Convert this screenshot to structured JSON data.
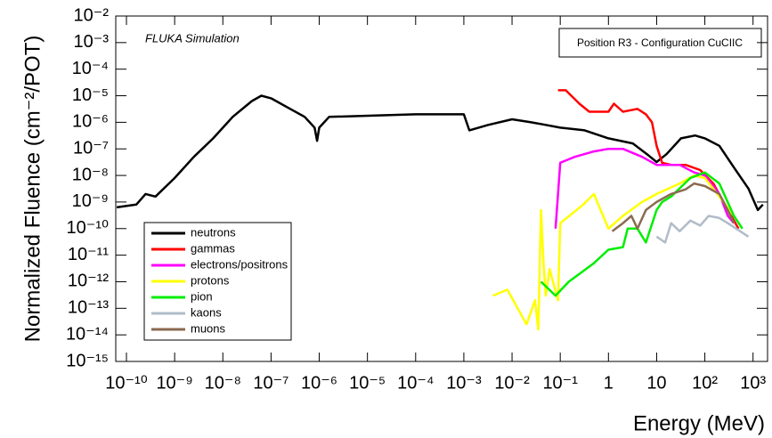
{
  "chart_data": {
    "type": "line",
    "xscale": "log",
    "yscale": "log",
    "annotation": "FLUKA Simulation",
    "info_box": "Position R3 - Configuration CuCIIC",
    "xlabel": "Energy (MeV)",
    "ylabel": "Normalized Fluence (cm⁻²/POT)",
    "legend": "lower left",
    "xlim": [
      6e-11,
      2000
    ],
    "ylim": [
      1e-15,
      0.01
    ],
    "xticks": [
      {
        "value": 1e-10,
        "label": "10⁻¹⁰"
      },
      {
        "value": 1e-09,
        "label": "10⁻⁹"
      },
      {
        "value": 1e-08,
        "label": "10⁻⁸"
      },
      {
        "value": 1e-07,
        "label": "10⁻⁷"
      },
      {
        "value": 1e-06,
        "label": "10⁻⁶"
      },
      {
        "value": 1e-05,
        "label": "10⁻⁵"
      },
      {
        "value": 0.0001,
        "label": "10⁻⁴"
      },
      {
        "value": 0.001,
        "label": "10⁻³"
      },
      {
        "value": 0.01,
        "label": "10⁻²"
      },
      {
        "value": 0.1,
        "label": "10⁻¹"
      },
      1,
      10,
      {
        "value": 100,
        "label": "10²"
      },
      {
        "value": 1000,
        "label": "10³"
      }
    ],
    "yticks": [
      {
        "value": 0.01,
        "label": "10⁻²"
      },
      {
        "value": 0.001,
        "label": "10⁻³"
      },
      {
        "value": 0.0001,
        "label": "10⁻⁴"
      },
      {
        "value": 1e-05,
        "label": "10⁻⁵"
      },
      {
        "value": 1e-06,
        "label": "10⁻⁶"
      },
      {
        "value": 1e-07,
        "label": "10⁻⁷"
      },
      {
        "value": 1e-08,
        "label": "10⁻⁸"
      },
      {
        "value": 1e-09,
        "label": "10⁻⁹"
      },
      {
        "value": 1e-10,
        "label": "10⁻¹⁰"
      },
      {
        "value": 1e-11,
        "label": "10⁻¹¹"
      },
      {
        "value": 1e-12,
        "label": "10⁻¹²"
      },
      {
        "value": 1e-13,
        "label": "10⁻¹³"
      },
      {
        "value": 1e-14,
        "label": "10⁻¹⁴"
      },
      {
        "value": 1e-15,
        "label": "10⁻¹⁵"
      }
    ],
    "series": [
      {
        "name": "neutrons",
        "color": "#000000",
        "x": [
          6.3e-11,
          1.6e-10,
          2.5e-10,
          4e-10,
          1e-09,
          2.5e-09,
          6.3e-09,
          1.6e-08,
          4e-08,
          6.3e-08,
          1e-07,
          2.5e-07,
          5e-07,
          8e-07,
          9e-07,
          1e-06,
          1.6e-06,
          0.0001,
          0.001,
          0.0013,
          0.0032,
          0.01,
          0.025,
          0.05,
          0.1,
          0.32,
          1,
          3.2,
          6.3,
          10,
          16,
          32,
          63,
          100,
          200,
          400,
          800,
          1260,
          1600
        ],
        "values": [
          6.3e-10,
          8e-10,
          2e-09,
          1.6e-09,
          8e-09,
          5e-08,
          2.5e-07,
          1.6e-06,
          6.3e-06,
          1e-05,
          8e-06,
          3.2e-06,
          1.6e-06,
          6.3e-07,
          2e-07,
          6.3e-07,
          1.6e-06,
          2e-06,
          2e-06,
          5e-07,
          8e-07,
          1.3e-06,
          1e-06,
          8e-07,
          6.3e-07,
          5e-07,
          2.5e-07,
          1.6e-07,
          6.3e-08,
          3.2e-08,
          6.3e-08,
          2.5e-07,
          3.2e-07,
          2.5e-07,
          1.3e-07,
          2e-08,
          3.2e-09,
          5e-10,
          8e-10
        ]
      },
      {
        "name": "gammas",
        "color": "#ff0000",
        "x": [
          0.09,
          0.13,
          0.25,
          0.4,
          1,
          1.3,
          2,
          4,
          6,
          8,
          10,
          13,
          20,
          40,
          80,
          150,
          300,
          500
        ],
        "values": [
          1.6e-05,
          1.6e-05,
          5e-06,
          2.5e-06,
          2.5e-06,
          5e-06,
          2.5e-06,
          3.2e-06,
          2e-06,
          1e-06,
          1.3e-07,
          3e-08,
          2.5e-08,
          2.5e-08,
          1.6e-08,
          5e-09,
          5e-10,
          1e-10
        ]
      },
      {
        "name": "electrons/positrons",
        "color": "#ff00ff",
        "x": [
          0.08,
          0.1,
          0.2,
          0.5,
          1,
          2,
          5,
          10,
          30,
          60,
          100,
          200,
          300,
          400
        ],
        "values": [
          1e-10,
          3e-08,
          5e-08,
          8e-08,
          1e-07,
          1e-07,
          5e-08,
          2.5e-08,
          2.5e-08,
          1.3e-08,
          1e-08,
          2e-09,
          3e-10,
          1.6e-10
        ]
      },
      {
        "name": "protons",
        "color": "#ffff00",
        "x": [
          0.004,
          0.008,
          0.02,
          0.03,
          0.035,
          0.04,
          0.045,
          0.05,
          0.06,
          0.09,
          0.1,
          0.3,
          0.5,
          1,
          2,
          5,
          10,
          30,
          60,
          100,
          200,
          400
        ],
        "values": [
          3e-13,
          5e-13,
          2.5e-14,
          2e-13,
          1.6e-14,
          5e-10,
          5e-12,
          3e-13,
          3e-12,
          2e-13,
          1.6e-10,
          8e-10,
          2e-09,
          1e-10,
          3e-10,
          1e-09,
          2e-09,
          5e-09,
          1e-08,
          8e-09,
          1.6e-09,
          3e-10
        ]
      },
      {
        "name": "pion",
        "color": "#00ee00",
        "x": [
          0.04,
          0.08,
          0.15,
          0.5,
          1,
          2,
          2.5,
          4,
          6,
          10,
          13,
          20,
          50,
          100,
          200,
          400,
          600
        ],
        "values": [
          1e-12,
          3e-13,
          1e-12,
          5e-12,
          1.6e-11,
          2e-11,
          1e-10,
          1e-10,
          3e-11,
          5e-10,
          1e-09,
          1.6e-09,
          8e-09,
          1.3e-08,
          5e-09,
          3e-10,
          1e-10
        ]
      },
      {
        "name": "kaons",
        "color": "#b0bcc8",
        "x": [
          10,
          15,
          20,
          30,
          50,
          80,
          120,
          200,
          300,
          800
        ],
        "values": [
          5e-11,
          3e-11,
          1.6e-10,
          8e-11,
          2e-10,
          1.3e-10,
          3e-10,
          2.5e-10,
          1.6e-10,
          5e-11
        ]
      },
      {
        "name": "muons",
        "color": "#8b6a50",
        "x": [
          1.2,
          2,
          3,
          4,
          6,
          10,
          20,
          40,
          60,
          100,
          200,
          300,
          400
        ],
        "values": [
          8e-11,
          1.6e-10,
          3e-10,
          1e-10,
          5e-10,
          1e-09,
          2e-09,
          3e-09,
          5e-09,
          4e-09,
          2e-09,
          5e-10,
          1.6e-10
        ]
      }
    ]
  }
}
